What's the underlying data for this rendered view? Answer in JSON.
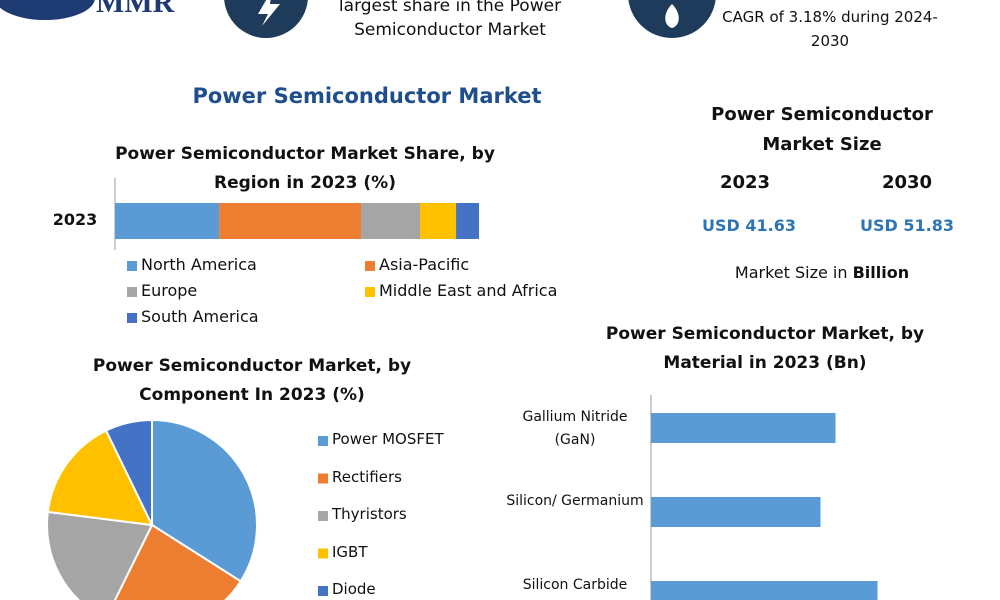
{
  "logo": "MMR",
  "highlights": [
    "largest share in the Power Semiconductor Market",
    "CAGR of 3.18% during 2024-2030"
  ],
  "title": "Power Semiconductor Market",
  "market_size": {
    "title": "Power Semiconductor Market Size",
    "years": [
      "2023",
      "2030"
    ],
    "values": [
      "USD 41.63",
      "USD 51.83"
    ],
    "unit_prefix": "Market Size in",
    "unit": "Billion"
  },
  "chart_data": [
    {
      "type": "bar",
      "orientation": "horizontal",
      "stacked": true,
      "title": "Power Semiconductor Market Share, by Region in 2023 (%)",
      "categories": [
        "2023"
      ],
      "xlim": [
        0,
        100
      ],
      "series": [
        {
          "name": "North America",
          "color": "#5b9bd5",
          "values": [
            28.6
          ]
        },
        {
          "name": "Asia-Pacific",
          "color": "#ed7d31",
          "values": [
            39
          ]
        },
        {
          "name": "Europe",
          "color": "#a5a5a5",
          "values": [
            16.2
          ]
        },
        {
          "name": "Middle East and Africa",
          "color": "#ffc000",
          "values": [
            9.9
          ]
        },
        {
          "name": "South America",
          "color": "#4472c4",
          "values": [
            6.3
          ]
        }
      ]
    },
    {
      "type": "pie",
      "title": "Power Semiconductor Market, by Component In 2023 (%)",
      "categories": [
        "Power MOSFET",
        "Rectifiers",
        "Thyristors",
        "IGBT",
        "Diode"
      ],
      "values": [
        34,
        23.3,
        19.7,
        15.8,
        7.2
      ],
      "colors": [
        "#5b9bd5",
        "#ed7d31",
        "#a5a5a5",
        "#ffc000",
        "#4472c4"
      ]
    },
    {
      "type": "bar",
      "orientation": "horizontal",
      "title": "Power Semiconductor Market, by Material in 2023 (Bn)",
      "categories": [
        "Gallium Nitride (GaN)",
        "Silicon/ Germanium",
        "Silicon Carbide"
      ],
      "values": [
        12.3,
        11.3,
        15.1
      ],
      "xlim": [
        0,
        20
      ],
      "color": "#5b9bd5"
    }
  ]
}
